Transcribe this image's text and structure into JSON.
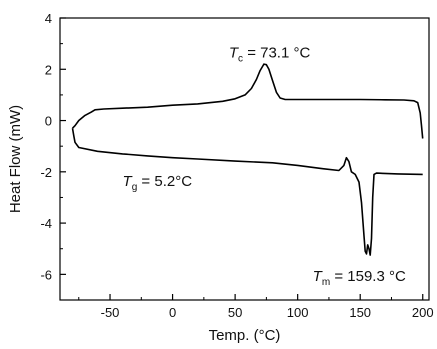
{
  "chart_data": {
    "type": "line",
    "xlabel": "Temp. (°C)",
    "ylabel": "Heat Flow (mW)",
    "xlim": [
      -90,
      205
    ],
    "ylim": [
      -7,
      4
    ],
    "x_ticks": [
      -50,
      0,
      50,
      100,
      150,
      200
    ],
    "y_ticks": [
      4,
      2,
      0,
      -2,
      -4,
      -6
    ],
    "grid": false,
    "legend": "none",
    "line_color": "#000000",
    "series": [
      {
        "points": [
          [
            -80,
            -0.3
          ],
          [
            -78,
            -0.2
          ],
          [
            -75,
            0.0
          ],
          [
            -70,
            0.2
          ],
          [
            -65,
            0.33
          ],
          [
            -62,
            0.42
          ],
          [
            -55,
            0.45
          ],
          [
            -40,
            0.48
          ],
          [
            -20,
            0.52
          ],
          [
            0,
            0.6
          ],
          [
            20,
            0.65
          ],
          [
            40,
            0.75
          ],
          [
            50,
            0.85
          ],
          [
            58,
            1.0
          ],
          [
            63,
            1.25
          ],
          [
            67,
            1.6
          ],
          [
            70,
            1.95
          ],
          [
            73,
            2.2
          ],
          [
            75,
            2.18
          ],
          [
            77,
            2.0
          ],
          [
            80,
            1.55
          ],
          [
            83,
            1.1
          ],
          [
            86,
            0.88
          ],
          [
            90,
            0.82
          ],
          [
            120,
            0.82
          ],
          [
            150,
            0.82
          ],
          [
            170,
            0.81
          ],
          [
            185,
            0.8
          ],
          [
            193,
            0.77
          ],
          [
            196,
            0.7
          ],
          [
            198,
            0.3
          ],
          [
            199,
            -0.2
          ],
          [
            200,
            -0.7
          ]
        ]
      },
      {
        "points": [
          [
            -80,
            -0.3
          ],
          [
            -79,
            -0.6
          ],
          [
            -78,
            -0.85
          ],
          [
            -75,
            -1.05
          ],
          [
            -60,
            -1.2
          ],
          [
            -40,
            -1.3
          ],
          [
            -20,
            -1.38
          ],
          [
            0,
            -1.45
          ],
          [
            20,
            -1.5
          ],
          [
            50,
            -1.58
          ],
          [
            80,
            -1.65
          ],
          [
            100,
            -1.75
          ],
          [
            120,
            -1.88
          ],
          [
            133,
            -1.95
          ],
          [
            137,
            -1.75
          ],
          [
            139,
            -1.45
          ],
          [
            141,
            -1.6
          ],
          [
            143,
            -2.0
          ],
          [
            146,
            -2.1
          ],
          [
            149,
            -2.4
          ],
          [
            151,
            -3.2
          ],
          [
            153,
            -4.5
          ],
          [
            154,
            -5.1
          ],
          [
            155,
            -5.2
          ],
          [
            156,
            -4.85
          ],
          [
            157,
            -5.0
          ],
          [
            158,
            -5.25
          ],
          [
            159,
            -4.6
          ],
          [
            160,
            -3.0
          ],
          [
            161,
            -2.1
          ],
          [
            163,
            -2.05
          ],
          [
            180,
            -2.08
          ],
          [
            200,
            -2.1
          ]
        ]
      }
    ],
    "annotations": [
      {
        "symbol": "T",
        "subscript": "c",
        "text": " = 73.1 °C",
        "x": 45,
        "y": 2.45
      },
      {
        "symbol": "T",
        "subscript": "g",
        "text": " = 5.2°C",
        "x": -40,
        "y": -2.55
      },
      {
        "symbol": "T",
        "subscript": "m",
        "text": " = 159.3 °C",
        "x": 112,
        "y": -6.25
      }
    ]
  }
}
